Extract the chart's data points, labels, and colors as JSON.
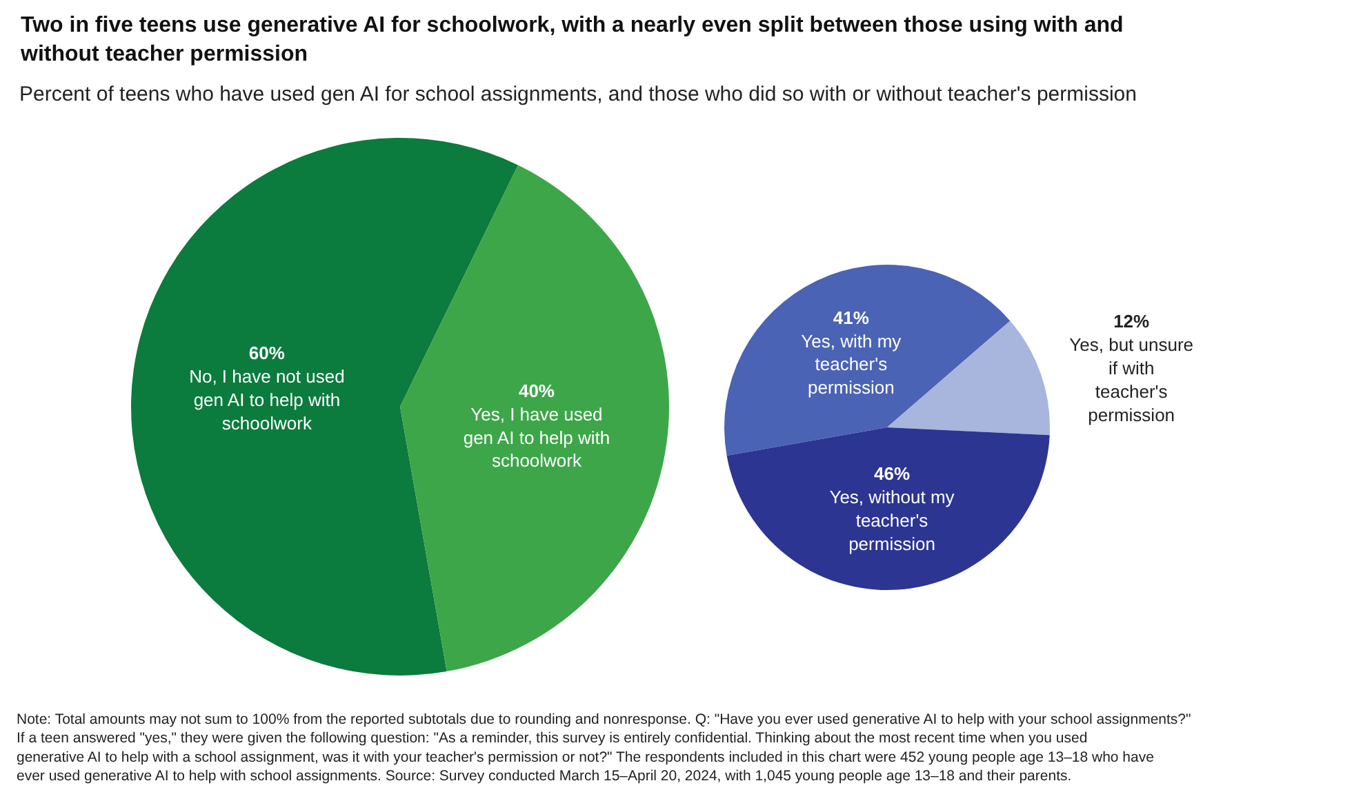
{
  "chart_data": [
    {
      "type": "pie",
      "title": "Two in five teens use generative AI for schoolwork, with a nearly even split between those using with and without teacher permission",
      "subtitle": "Percent of teens who have used gen AI for school assignments, and those who did so with or without teacher's permission",
      "categories": [
        "No, I have not used gen AI to help with schoolwork",
        "Yes, I have used gen AI to help with schoolwork"
      ],
      "values": [
        60,
        40
      ],
      "value_labels": [
        "60%",
        "40%"
      ],
      "colors": [
        "#0b7b3e",
        "#3da649"
      ],
      "legend": false,
      "annotations": [
        "Note: Total amounts may not sum to 100% from the reported subtotals due to rounding and nonresponse. Q: \"Have you ever used generative AI to help with your school assignments?\" If a teen answered \"yes,\" they were given the following question: \"As a reminder, this survey is entirely confidential. Thinking about the most recent time when you used generative AI to help with a school assignment, was it with your teacher's permission or not?\" The respondents included in this chart were 452 young people age 13–18 who have ever used generative AI to help with school assignments. Source: Survey conducted March 15–April 20, 2024, with 1,045 young people age 13–18 and their parents."
      ]
    },
    {
      "type": "pie",
      "categories": [
        "Yes, with my teacher's permission",
        "Yes, but unsure if with teacher's permission",
        "Yes, without my teacher's permission"
      ],
      "values": [
        41,
        12,
        46
      ],
      "value_labels": [
        "41%",
        "12%",
        "46%"
      ],
      "colors": [
        "#4a63b5",
        "#a8b5dc",
        "#2c3592"
      ],
      "legend": false
    }
  ]
}
